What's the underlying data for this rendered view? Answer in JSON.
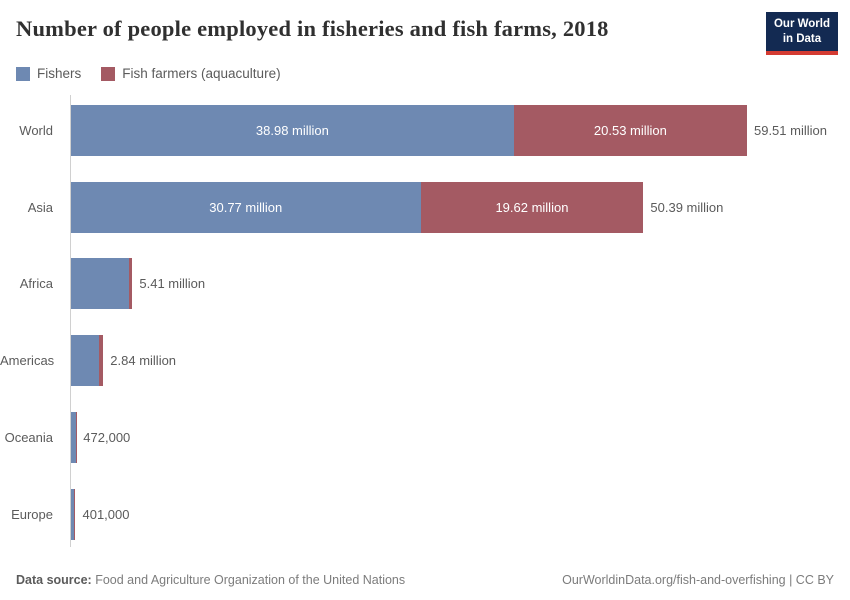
{
  "header": {
    "title": "Number of people employed in fisheries and fish farms, 2018",
    "logo": {
      "line1": "Our World",
      "line2": "in Data",
      "bg_color": "#132a52",
      "accent_color": "#d43b32"
    }
  },
  "legend": [
    {
      "label": "Fishers",
      "color": "#6e89b2"
    },
    {
      "label": "Fish farmers (aquaculture)",
      "color": "#a45a63"
    }
  ],
  "chart_data": {
    "type": "bar",
    "orientation": "horizontal",
    "stacked": true,
    "title": "Number of people employed in fisheries and fish farms, 2018",
    "categories": [
      "World",
      "Asia",
      "Africa",
      "Americas",
      "Oceania",
      "Europe"
    ],
    "series": [
      {
        "name": "Fishers",
        "unit": "million people",
        "color": "#6e89b2",
        "values": [
          38.98,
          30.77,
          5.1,
          2.5,
          0.46,
          0.25
        ]
      },
      {
        "name": "Fish farmers (aquaculture)",
        "unit": "million people",
        "color": "#a45a63",
        "values": [
          20.53,
          19.62,
          0.31,
          0.34,
          0.01,
          0.15
        ]
      }
    ],
    "totals": [
      59.51,
      50.39,
      5.41,
      2.84,
      0.472,
      0.401
    ],
    "segment_labels": [
      [
        "38.98 million",
        "20.53 million"
      ],
      [
        "30.77 million",
        "19.62 million"
      ],
      [
        "",
        ""
      ],
      [
        "",
        ""
      ],
      [
        "",
        ""
      ],
      [
        "",
        ""
      ]
    ],
    "total_labels": [
      "59.51 million",
      "50.39 million",
      "5.41 million",
      "2.84 million",
      "472,000",
      "401,000"
    ],
    "xmax": 59.51,
    "grid": false,
    "legend_position": "top"
  },
  "footer": {
    "source_label": "Data source:",
    "source_text": "Food and Agriculture Organization of the United Nations",
    "credit": "OurWorldinData.org/fish-and-overfishing | CC BY"
  }
}
